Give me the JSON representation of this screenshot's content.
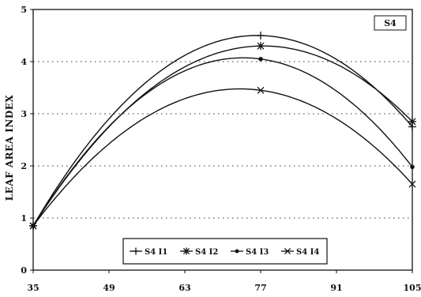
{
  "chart_data": {
    "type": "line",
    "panel_label": "S4",
    "ylabel": "LEAF AREA INDEX",
    "xlabel": "",
    "xlim": [
      35,
      105
    ],
    "ylim": [
      0,
      5
    ],
    "x_ticks": [
      35,
      49,
      63,
      77,
      91,
      105
    ],
    "y_ticks": [
      0,
      1,
      2,
      3,
      4,
      5
    ],
    "grid": "dotted horizontal",
    "legend_position": "bottom-center",
    "x": [
      35,
      77,
      105
    ],
    "series": [
      {
        "name": "S4 I1",
        "marker": "plus",
        "values": [
          0.85,
          4.5,
          2.75
        ]
      },
      {
        "name": "S4 I2",
        "marker": "asterisk",
        "values": [
          0.85,
          4.3,
          2.85
        ]
      },
      {
        "name": "S4 I3",
        "marker": "dot",
        "values": [
          0.85,
          4.05,
          1.98
        ]
      },
      {
        "name": "S4 I4",
        "marker": "x",
        "values": [
          0.85,
          3.45,
          1.65
        ]
      }
    ]
  }
}
